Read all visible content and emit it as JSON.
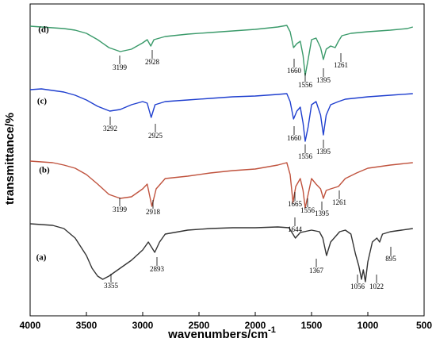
{
  "chart_data": {
    "type": "line",
    "xlabel": "wavenumbers/cm",
    "xlabel_sup": "-1",
    "ylabel": "transmittance/%",
    "xlim": [
      4000,
      500
    ],
    "xticks": [
      4000,
      3500,
      3000,
      2500,
      2000,
      1500,
      1000,
      500
    ],
    "ylim": [
      2,
      395
    ],
    "series": [
      {
        "name": "(d)",
        "color": "#3a9a6a",
        "x": [
          4000,
          3900,
          3800,
          3700,
          3600,
          3500,
          3400,
          3300,
          3199,
          3100,
          3000,
          2960,
          2928,
          2900,
          2800,
          2600,
          2400,
          2200,
          2000,
          1800,
          1720,
          1690,
          1660,
          1630,
          1600,
          1575,
          1556,
          1530,
          1500,
          1460,
          1420,
          1395,
          1370,
          1330,
          1290,
          1261,
          1230,
          1150,
          1000,
          800,
          650,
          600
        ],
        "values": [
          367,
          366,
          365,
          364,
          362,
          358,
          350,
          340,
          335,
          338,
          346,
          350,
          342,
          350,
          354,
          357,
          359,
          361,
          363,
          366,
          368,
          360,
          340,
          345,
          348,
          330,
          305,
          325,
          350,
          352,
          340,
          325,
          338,
          342,
          340,
          348,
          355,
          358,
          360,
          362,
          364,
          366
        ],
        "peak_labels": [
          3199,
          2928,
          1660,
          1556,
          1395,
          1261
        ]
      },
      {
        "name": "(c)",
        "color": "#1f3fcf",
        "x": [
          4000,
          3900,
          3800,
          3700,
          3600,
          3500,
          3400,
          3292,
          3200,
          3100,
          3000,
          2960,
          2925,
          2890,
          2800,
          2600,
          2400,
          2200,
          2000,
          1800,
          1720,
          1690,
          1660,
          1630,
          1600,
          1575,
          1556,
          1530,
          1500,
          1460,
          1420,
          1395,
          1370,
          1330,
          1261,
          1200,
          1000,
          800,
          600
        ],
        "values": [
          287,
          288,
          286,
          284,
          280,
          274,
          266,
          260,
          262,
          268,
          272,
          270,
          252,
          268,
          272,
          274,
          276,
          278,
          279,
          281,
          282,
          272,
          250,
          260,
          265,
          245,
          222,
          240,
          268,
          272,
          255,
          230,
          255,
          268,
          272,
          275,
          278,
          280,
          282
        ],
        "peak_labels": [
          3292,
          2925,
          1660,
          1556,
          1395
        ]
      },
      {
        "name": "(b)",
        "color": "#c0533e",
        "x": [
          4000,
          3900,
          3800,
          3700,
          3600,
          3500,
          3400,
          3300,
          3199,
          3100,
          3000,
          2960,
          2918,
          2880,
          2800,
          2600,
          2400,
          2200,
          2000,
          1800,
          1720,
          1690,
          1665,
          1640,
          1600,
          1575,
          1556,
          1530,
          1500,
          1460,
          1420,
          1395,
          1370,
          1330,
          1261,
          1200,
          1100,
          1000,
          800,
          600
        ],
        "values": [
          197,
          196,
          195,
          192,
          188,
          180,
          168,
          155,
          150,
          152,
          162,
          168,
          140,
          162,
          175,
          178,
          182,
          185,
          187,
          192,
          195,
          180,
          145,
          165,
          175,
          160,
          138,
          155,
          175,
          168,
          162,
          150,
          160,
          162,
          165,
          175,
          182,
          188,
          192,
          195
        ],
        "peak_labels": [
          3199,
          2918,
          1665,
          1556,
          1395,
          1261
        ]
      },
      {
        "name": "(a)",
        "color": "#333333",
        "x": [
          4000,
          3900,
          3800,
          3700,
          3600,
          3500,
          3450,
          3400,
          3355,
          3300,
          3200,
          3100,
          3000,
          2950,
          2893,
          2850,
          2800,
          2600,
          2400,
          2200,
          2000,
          1800,
          1700,
          1644,
          1600,
          1500,
          1430,
          1400,
          1367,
          1330,
          1250,
          1200,
          1150,
          1110,
          1080,
          1056,
          1040,
          1022,
          1000,
          960,
          920,
          895,
          870,
          800,
          700,
          600
        ],
        "values": [
          118,
          117,
          116,
          112,
          100,
          78,
          62,
          52,
          48,
          52,
          62,
          72,
          85,
          95,
          82,
          95,
          105,
          110,
          112,
          113,
          113,
          114,
          113,
          100,
          107,
          110,
          108,
          100,
          78,
          95,
          108,
          110,
          105,
          80,
          65,
          48,
          60,
          45,
          70,
          95,
          100,
          95,
          105,
          108,
          110,
          112
        ],
        "peak_labels": [
          3355,
          2893,
          1644,
          1367,
          1056,
          1022,
          895
        ]
      }
    ]
  }
}
